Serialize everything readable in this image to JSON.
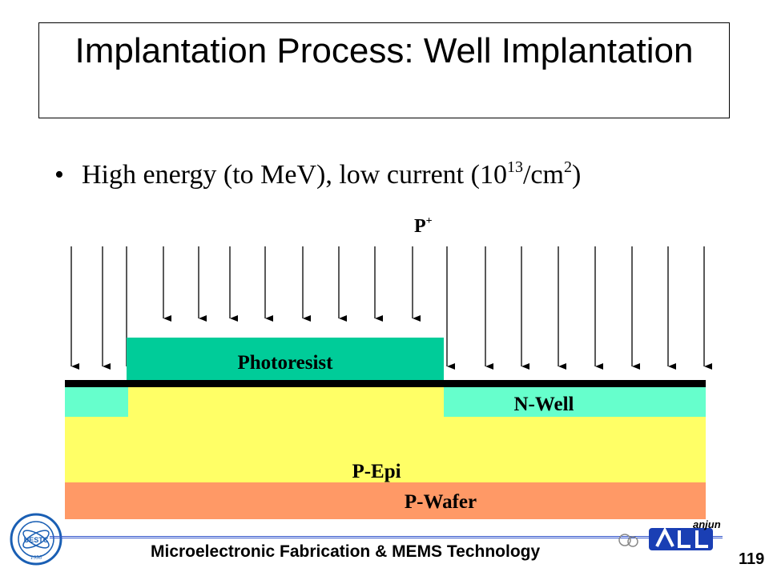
{
  "slide": {
    "title": "Implantation Process: Well Implantation",
    "bullet": {
      "prefix": "High energy (to MeV), low current (10",
      "exponent": "13",
      "mid": "/cm",
      "unit_exponent": "2",
      "suffix": ")"
    }
  },
  "diagram": {
    "ion_label": "P",
    "ion_charge": "+",
    "layers": {
      "photoresist": "Photoresist",
      "nwell": "N-Well",
      "pepi": "P-Epi",
      "pwafer": "P-Wafer"
    },
    "colors": {
      "photoresist": "#00cc99",
      "nwell": "#66ffcc",
      "pepi": "#ffff66",
      "pwafer": "#ff9966",
      "oxide": "#000000"
    }
  },
  "footer": {
    "course": "Microelectronic Fabrication & MEMS Technology",
    "page": "119",
    "logo_left_text": "UESTC",
    "logo_left_year": "1956",
    "logo_right_text": "anjun"
  }
}
